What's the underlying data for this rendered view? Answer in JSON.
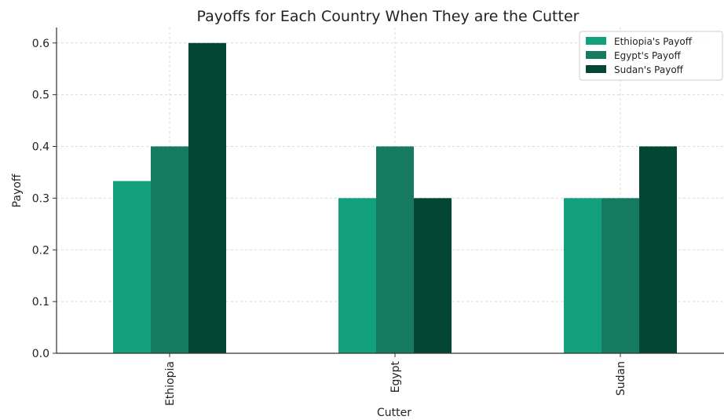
{
  "chart_data": {
    "type": "bar",
    "title": "Payoffs for Each Country When They are the Cutter",
    "xlabel": "Cutter",
    "ylabel": "Payoff",
    "categories": [
      "Ethiopia",
      "Egypt",
      "Sudan"
    ],
    "series": [
      {
        "name": "Ethiopia's Payoff",
        "color": "#13a07c",
        "values": [
          0.333,
          0.3,
          0.3
        ]
      },
      {
        "name": "Egypt's Payoff",
        "color": "#157a60",
        "values": [
          0.4,
          0.4,
          0.3
        ]
      },
      {
        "name": "Sudan's Payoff",
        "color": "#044634",
        "values": [
          0.6,
          0.3,
          0.4
        ]
      }
    ],
    "ylim": [
      0,
      0.63
    ],
    "yticks": [
      "0.0",
      "0.1",
      "0.2",
      "0.3",
      "0.4",
      "0.5",
      "0.6"
    ],
    "grid": true,
    "legend_position": "top-right"
  }
}
